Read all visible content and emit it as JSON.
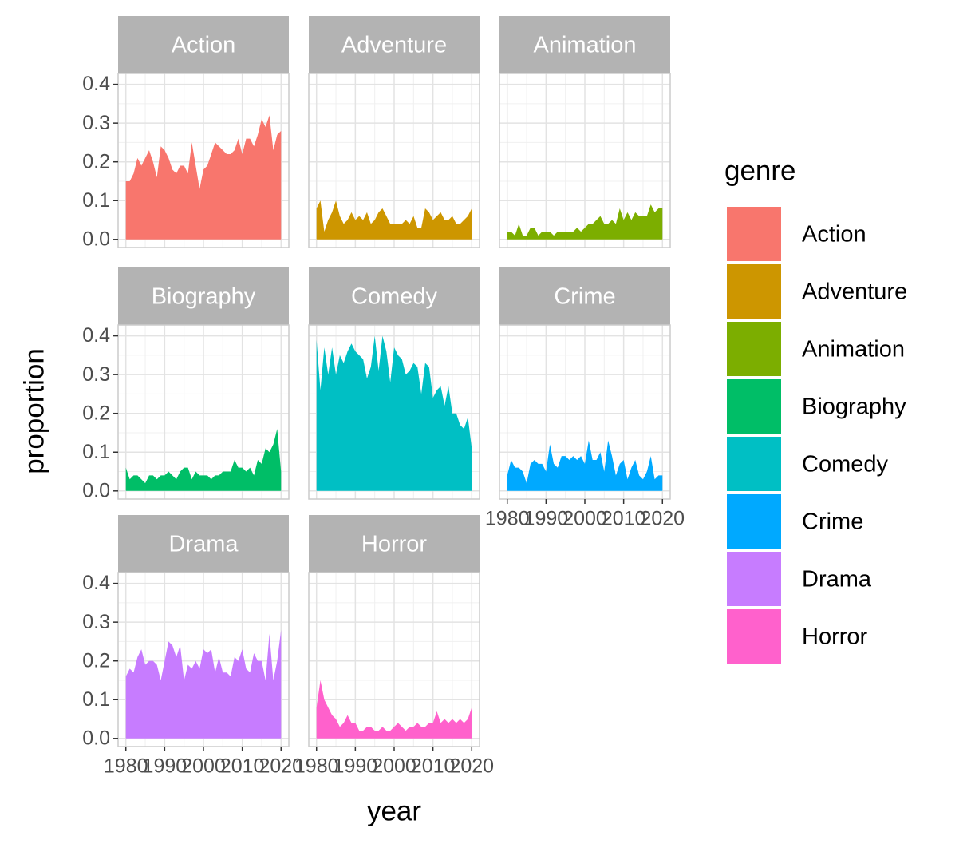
{
  "chart_data": {
    "type": "area",
    "x_label": "year",
    "y_label": "proportion",
    "legend_title": "genre",
    "legend": "right",
    "grid": true,
    "x": [
      1980,
      1981,
      1982,
      1983,
      1984,
      1985,
      1986,
      1987,
      1988,
      1989,
      1990,
      1991,
      1992,
      1993,
      1994,
      1995,
      1996,
      1997,
      1998,
      1999,
      2000,
      2001,
      2002,
      2003,
      2004,
      2005,
      2006,
      2007,
      2008,
      2009,
      2010,
      2011,
      2012,
      2013,
      2014,
      2015,
      2016,
      2017,
      2018,
      2019,
      2020
    ],
    "xlim": [
      1978,
      2022
    ],
    "xticks": [
      1980,
      1990,
      2000,
      2010,
      2020
    ],
    "ylim": [
      -0.021,
      0.428
    ],
    "yticks": [
      {
        "value": 0,
        "label": "0.0"
      },
      0.1,
      0.2,
      0.3,
      0.4
    ],
    "series": [
      {
        "name": "Action",
        "color": "#F8766D",
        "values": [
          0.15,
          0.15,
          0.17,
          0.21,
          0.19,
          0.21,
          0.23,
          0.2,
          0.16,
          0.24,
          0.23,
          0.21,
          0.18,
          0.17,
          0.19,
          0.19,
          0.17,
          0.25,
          0.19,
          0.13,
          0.18,
          0.19,
          0.22,
          0.25,
          0.24,
          0.23,
          0.22,
          0.22,
          0.23,
          0.26,
          0.22,
          0.26,
          0.26,
          0.24,
          0.27,
          0.31,
          0.29,
          0.32,
          0.23,
          0.27,
          0.28
        ]
      },
      {
        "name": "Adventure",
        "color": "#CD9600",
        "values": [
          0.08,
          0.1,
          0.02,
          0.05,
          0.07,
          0.1,
          0.06,
          0.04,
          0.05,
          0.07,
          0.05,
          0.06,
          0.05,
          0.07,
          0.04,
          0.05,
          0.07,
          0.08,
          0.06,
          0.04,
          0.04,
          0.04,
          0.04,
          0.05,
          0.04,
          0.06,
          0.03,
          0.03,
          0.08,
          0.07,
          0.05,
          0.06,
          0.07,
          0.05,
          0.05,
          0.06,
          0.04,
          0.04,
          0.05,
          0.06,
          0.08
        ]
      },
      {
        "name": "Animation",
        "color": "#7CAE00",
        "values": [
          0.02,
          0.02,
          0.01,
          0.04,
          0.01,
          0.01,
          0.03,
          0.03,
          0.01,
          0.02,
          0.02,
          0.02,
          0.01,
          0.02,
          0.02,
          0.02,
          0.02,
          0.02,
          0.03,
          0.02,
          0.03,
          0.04,
          0.04,
          0.05,
          0.06,
          0.04,
          0.04,
          0.05,
          0.04,
          0.08,
          0.05,
          0.07,
          0.05,
          0.07,
          0.06,
          0.06,
          0.06,
          0.09,
          0.07,
          0.08,
          0.08
        ]
      },
      {
        "name": "Biography",
        "color": "#00BE67",
        "values": [
          0.06,
          0.03,
          0.04,
          0.04,
          0.03,
          0.02,
          0.04,
          0.04,
          0.03,
          0.04,
          0.04,
          0.05,
          0.04,
          0.03,
          0.05,
          0.06,
          0.06,
          0.03,
          0.05,
          0.04,
          0.04,
          0.04,
          0.03,
          0.04,
          0.04,
          0.05,
          0.05,
          0.05,
          0.08,
          0.06,
          0.06,
          0.05,
          0.06,
          0.04,
          0.08,
          0.07,
          0.11,
          0.1,
          0.12,
          0.16,
          0.05
        ]
      },
      {
        "name": "Comedy",
        "color": "#00BFC4",
        "values": [
          0.39,
          0.26,
          0.37,
          0.3,
          0.37,
          0.3,
          0.35,
          0.33,
          0.36,
          0.38,
          0.36,
          0.35,
          0.34,
          0.29,
          0.32,
          0.4,
          0.31,
          0.4,
          0.36,
          0.28,
          0.37,
          0.35,
          0.34,
          0.3,
          0.31,
          0.33,
          0.32,
          0.25,
          0.33,
          0.32,
          0.24,
          0.26,
          0.27,
          0.22,
          0.27,
          0.2,
          0.2,
          0.17,
          0.16,
          0.19,
          0.11
        ]
      },
      {
        "name": "Crime",
        "color": "#00A9FF",
        "values": [
          0.04,
          0.08,
          0.06,
          0.06,
          0.05,
          0.02,
          0.07,
          0.08,
          0.07,
          0.07,
          0.05,
          0.12,
          0.07,
          0.06,
          0.09,
          0.09,
          0.08,
          0.09,
          0.08,
          0.09,
          0.07,
          0.13,
          0.08,
          0.08,
          0.1,
          0.05,
          0.13,
          0.09,
          0.04,
          0.07,
          0.08,
          0.03,
          0.06,
          0.08,
          0.04,
          0.03,
          0.05,
          0.09,
          0.03,
          0.04,
          0.04
        ]
      },
      {
        "name": "Drama",
        "color": "#C77CFF",
        "values": [
          0.16,
          0.18,
          0.17,
          0.21,
          0.23,
          0.19,
          0.2,
          0.2,
          0.19,
          0.15,
          0.2,
          0.25,
          0.24,
          0.21,
          0.24,
          0.15,
          0.19,
          0.18,
          0.2,
          0.18,
          0.23,
          0.22,
          0.23,
          0.17,
          0.21,
          0.17,
          0.17,
          0.16,
          0.21,
          0.2,
          0.23,
          0.18,
          0.17,
          0.22,
          0.2,
          0.2,
          0.15,
          0.27,
          0.15,
          0.2,
          0.28
        ]
      },
      {
        "name": "Horror",
        "color": "#FF61CC",
        "values": [
          0.08,
          0.15,
          0.1,
          0.08,
          0.06,
          0.05,
          0.03,
          0.04,
          0.06,
          0.04,
          0.04,
          0.02,
          0.02,
          0.03,
          0.03,
          0.02,
          0.02,
          0.03,
          0.02,
          0.02,
          0.03,
          0.04,
          0.03,
          0.02,
          0.03,
          0.03,
          0.04,
          0.03,
          0.03,
          0.04,
          0.04,
          0.07,
          0.04,
          0.05,
          0.04,
          0.05,
          0.04,
          0.05,
          0.04,
          0.05,
          0.08
        ]
      }
    ]
  }
}
